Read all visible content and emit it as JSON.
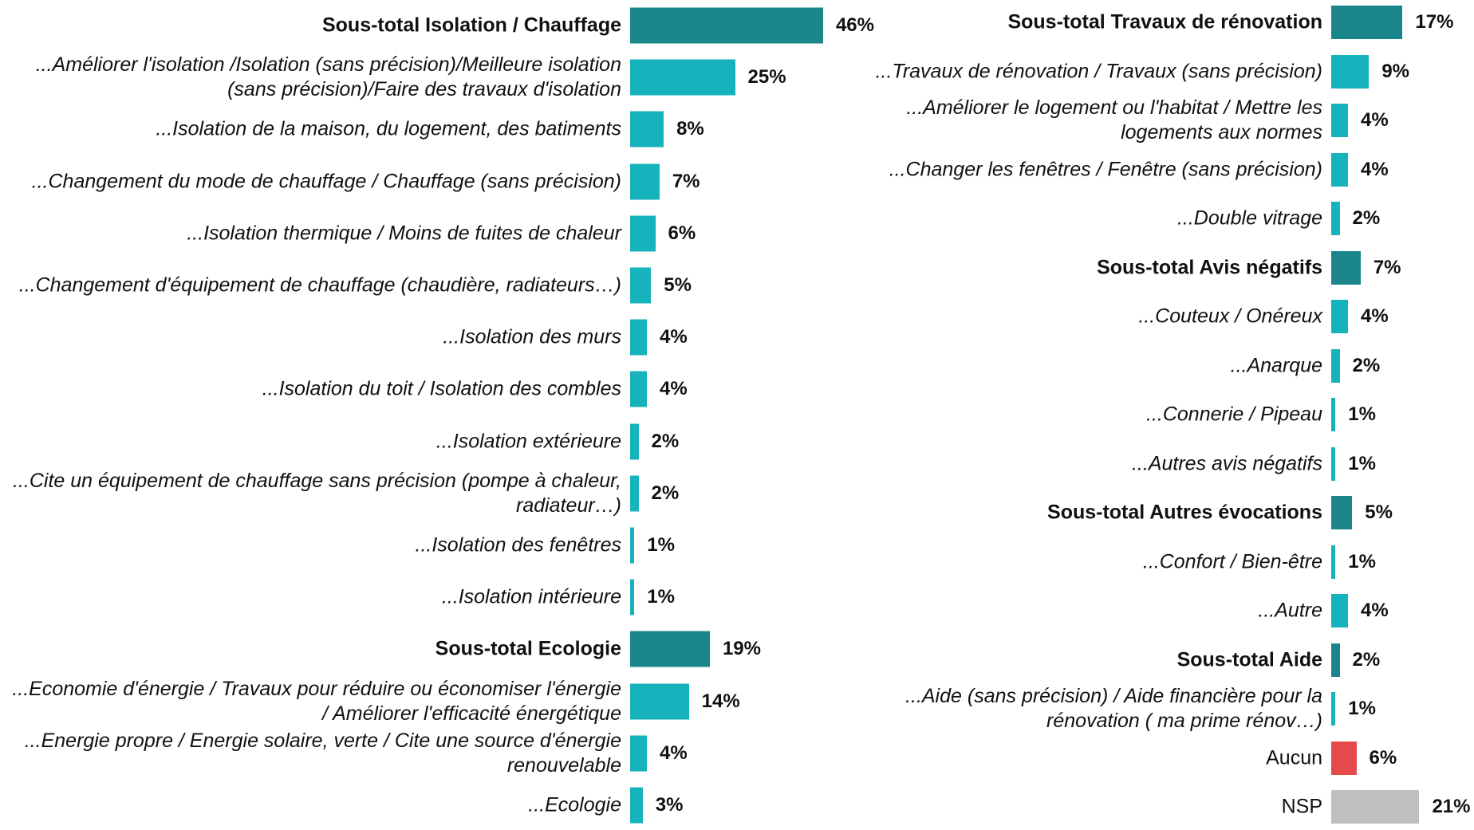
{
  "chart_data": [
    {
      "type": "barh",
      "categories": [
        "Sous-total Isolation / Chauffage",
        "...Améliorer l'isolation /Isolation (sans précision)/Meilleure isolation (sans précision)/Faire des travaux d'isolation",
        "...Isolation de la maison, du logement, des batiments",
        "...Changement du mode de chauffage / Chauffage (sans précision)",
        "...Isolation thermique / Moins de fuites de chaleur",
        "...Changement d'équipement de chauffage (chaudière, radiateurs…)",
        "...Isolation des murs",
        "...Isolation du toit / Isolation des combles",
        "...Isolation extérieure",
        "...Cite un équipement de chauffage sans précision (pompe à chaleur, radiateur…)",
        "...Isolation des fenêtres",
        "...Isolation intérieure",
        "Sous-total Ecologie",
        "...Economie d'énergie / Travaux pour réduire ou économiser l'énergie / Améliorer l'efficacité énergétique",
        "...Energie propre / Energie solaire, verte / Cite une source d'énergie renouvelable",
        "...Ecologie"
      ],
      "values": [
        46,
        25,
        8,
        7,
        6,
        5,
        4,
        4,
        2,
        2,
        1,
        1,
        19,
        14,
        4,
        3
      ],
      "value_labels": [
        "46%",
        "25%",
        "8%",
        "7%",
        "6%",
        "5%",
        "4%",
        "4%",
        "2%",
        "2%",
        "1%",
        "1%",
        "19%",
        "14%",
        "4%",
        "3%"
      ],
      "colors": [
        "#1a858a",
        "#17b3bc",
        "#17b3bc",
        "#17b3bc",
        "#17b3bc",
        "#17b3bc",
        "#17b3bc",
        "#17b3bc",
        "#17b3bc",
        "#17b3bc",
        "#17b3bc",
        "#17b3bc",
        "#1a858a",
        "#17b3bc",
        "#17b3bc",
        "#17b3bc"
      ]
    },
    {
      "type": "barh",
      "categories": [
        "Sous-total Travaux de rénovation",
        "...Travaux de rénovation / Travaux (sans précision)",
        "...Améliorer le logement ou l'habitat / Mettre les logements aux normes",
        "...Changer les fenêtres / Fenêtre (sans précision)",
        "...Double vitrage",
        "Sous-total Avis négatifs",
        "...Couteux / Onéreux",
        "...Anarque",
        "...Connerie / Pipeau",
        "...Autres avis négatifs",
        "Sous-total Autres évocations",
        "...Confort / Bien-être",
        "...Autre",
        "Sous-total Aide",
        "...Aide (sans précision) / Aide financière pour la rénovation ( ma prime rénov…)",
        "Aucun",
        "NSP"
      ],
      "values": [
        17,
        9,
        4,
        4,
        2,
        7,
        4,
        2,
        1,
        1,
        5,
        1,
        4,
        2,
        1,
        6,
        21
      ],
      "value_labels": [
        "17%",
        "9%",
        "4%",
        "4%",
        "2%",
        "7%",
        "4%",
        "2%",
        "1%",
        "1%",
        "5%",
        "1%",
        "4%",
        "2%",
        "1%",
        "6%",
        "21%"
      ],
      "colors": [
        "#1a858a",
        "#17b3bc",
        "#17b3bc",
        "#17b3bc",
        "#17b3bc",
        "#1a858a",
        "#17b3bc",
        "#17b3bc",
        "#17b3bc",
        "#17b3bc",
        "#1a858a",
        "#17b3bc",
        "#17b3bc",
        "#1a858a",
        "#17b3bc",
        "#e34a4a",
        "#bfbfbf"
      ]
    }
  ]
}
